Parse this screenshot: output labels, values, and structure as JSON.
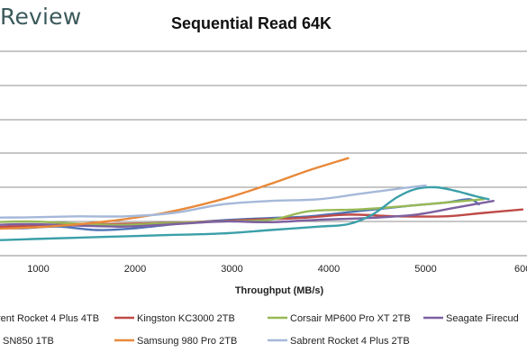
{
  "logo_text": "Review",
  "chart_data": {
    "type": "line",
    "title": "Sequential Read 64K",
    "xlabel": "Throughput (MB/s)",
    "ylabel": "",
    "xlim": [
      0,
      6000
    ],
    "x_ticks": [
      "1000",
      "2000",
      "3000",
      "4000",
      "5000",
      "600"
    ],
    "grid": true,
    "legend_position": "bottom",
    "series": [
      {
        "name": "rent Rocket 4 Plus 4TB",
        "color": "#4e73b7",
        "x": [
          0,
          200,
          450,
          800,
          1200,
          1600,
          2000,
          2500,
          3000,
          3400,
          3800,
          4300,
          4800,
          5200,
          5450,
          5550
        ],
        "y": [
          0.9,
          0.95,
          0.85,
          0.8,
          0.85,
          0.75,
          0.8,
          0.95,
          1.05,
          1.1,
          1.15,
          1.3,
          1.45,
          1.55,
          1.65,
          1.5
        ]
      },
      {
        "name": "Kingston KC3000 2TB",
        "color": "#be4b48",
        "x": [
          0,
          300,
          700,
          1100,
          1600,
          2200,
          2800,
          3200,
          3700,
          4200,
          4700,
          5200,
          5600,
          6000
        ],
        "y": [
          0.75,
          0.8,
          0.85,
          0.9,
          0.92,
          0.95,
          1.0,
          1.05,
          1.1,
          1.2,
          1.15,
          1.15,
          1.25,
          1.35
        ]
      },
      {
        "name": "Corsair MP600 Pro XT 2TB",
        "color": "#98b954",
        "x": [
          0,
          400,
          900,
          1300,
          1800,
          2300,
          2900,
          3400,
          3800,
          4300,
          4800,
          5200,
          5600
        ],
        "y": [
          0.78,
          0.95,
          1.0,
          0.95,
          0.9,
          0.95,
          1.0,
          1.05,
          1.3,
          1.35,
          1.45,
          1.55,
          1.65
        ]
      },
      {
        "name": "Seagate Firecud",
        "color": "#7d60a0",
        "x": [
          0,
          400,
          900,
          1400,
          1900,
          2400,
          2900,
          3400,
          3900,
          4400,
          4900,
          5300,
          5700
        ],
        "y": [
          0.8,
          0.88,
          0.92,
          0.88,
          0.85,
          0.92,
          1.0,
          0.98,
          1.05,
          1.1,
          1.2,
          1.4,
          1.6
        ]
      },
      {
        "name": "SN850 1TB",
        "color": "#3b9fa8",
        "x": [
          0,
          500,
          1100,
          1700,
          2300,
          2900,
          3400,
          3900,
          4200,
          4450,
          4700,
          4900,
          5100,
          5300,
          5500,
          5650
        ],
        "y": [
          0.45,
          0.45,
          0.5,
          0.55,
          0.6,
          0.65,
          0.75,
          0.85,
          0.92,
          1.2,
          1.7,
          1.95,
          2.0,
          1.9,
          1.75,
          1.65
        ]
      },
      {
        "name": "Samsung 980 Pro 2TB",
        "color": "#e8893a",
        "x": [
          0,
          500,
          1100,
          1700,
          2300,
          2900,
          3400,
          3800,
          4200
        ],
        "y": [
          0.75,
          0.78,
          0.85,
          1.0,
          1.25,
          1.65,
          2.1,
          2.5,
          2.85
        ]
      },
      {
        "name": "Sabrent Rocket 4 Plus 2TB",
        "color": "#a5b8d9",
        "x": [
          0,
          400,
          900,
          1400,
          1900,
          2400,
          2900,
          3400,
          3900,
          4300,
          4700,
          5000
        ],
        "y": [
          1.0,
          1.1,
          1.12,
          1.15,
          1.15,
          1.25,
          1.5,
          1.6,
          1.65,
          1.8,
          1.95,
          2.05
        ]
      }
    ]
  }
}
